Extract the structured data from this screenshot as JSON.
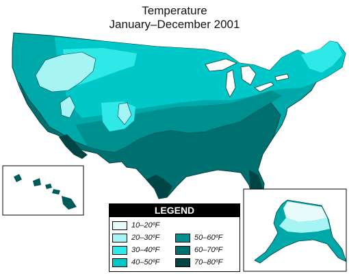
{
  "title": "Temperature",
  "subtitle": "January–December 2001",
  "legend": {
    "heading": "LEGEND",
    "items": [
      {
        "label": "10–20ºF",
        "color": "#e8fbfb"
      },
      {
        "label": "20–30ºF",
        "color": "#a6f4f4"
      },
      {
        "label": "30–40ºF",
        "color": "#2fe9e9"
      },
      {
        "label": "40–50ºF",
        "color": "#00c8c8"
      },
      {
        "label": "50–60ºF",
        "color": "#008f8f"
      },
      {
        "label": "60–70ºF",
        "color": "#006f6f"
      },
      {
        "label": "70–80ºF",
        "color": "#004545"
      }
    ]
  }
}
